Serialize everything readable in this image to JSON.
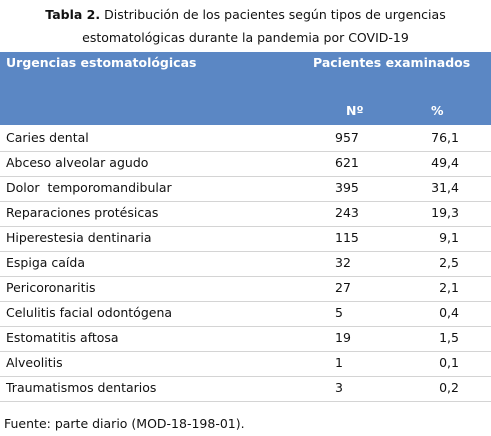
{
  "caption": {
    "label": "Tabla 2.",
    "text": "Distribución de los pacientes según  tipos de urgencias estomatológicas durante la pandemia por COVID-19"
  },
  "table": {
    "header": {
      "col1": "Urgencias estomatológicas",
      "group": "Pacientes examinados",
      "count": "Nº",
      "percent": "%"
    },
    "rows": [
      [
        "Caries dental",
        "957",
        "76,1"
      ],
      [
        "Abceso alveolar agudo",
        "621",
        "49,4"
      ],
      [
        "Dolor  temporomandibular",
        "395",
        "31,4"
      ],
      [
        "Reparaciones protésicas",
        "243",
        "19,3"
      ],
      [
        "Hiperestesia dentinaria",
        "115",
        "9,1"
      ],
      [
        "Espiga caída",
        "32",
        "2,5"
      ],
      [
        "Pericoronaritis",
        "27",
        "2,1"
      ],
      [
        "Celulitis facial odontógena",
        "5",
        "0,4"
      ],
      [
        "Estomatitis aftosa",
        "19",
        "1,5"
      ],
      [
        "Alveolitis",
        "1",
        "0,1"
      ],
      [
        "Traumatismos dentarios",
        "3",
        "0,2"
      ]
    ]
  },
  "footer": "Fuente: parte diario (MOD-18-198-01)."
}
